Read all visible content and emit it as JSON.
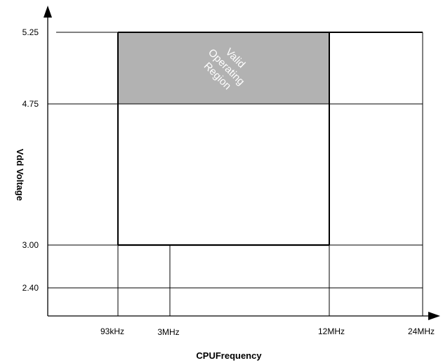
{
  "diagram": {
    "y_axis_title": "Vdd Voltage",
    "x_axis_title": "CPUFrequency",
    "y_ticks": [
      "5.25",
      "4.75",
      "3.00",
      "2.40"
    ],
    "x_ticks": [
      "93kHz",
      "3MHz",
      "12MHz",
      "24MHz"
    ],
    "region_label": {
      "line1": "Valid",
      "line2": "Operating",
      "line3": "Region"
    },
    "colors": {
      "region_fill": "#b2b2b2",
      "line": "#000000",
      "label": "#ffffff"
    }
  }
}
